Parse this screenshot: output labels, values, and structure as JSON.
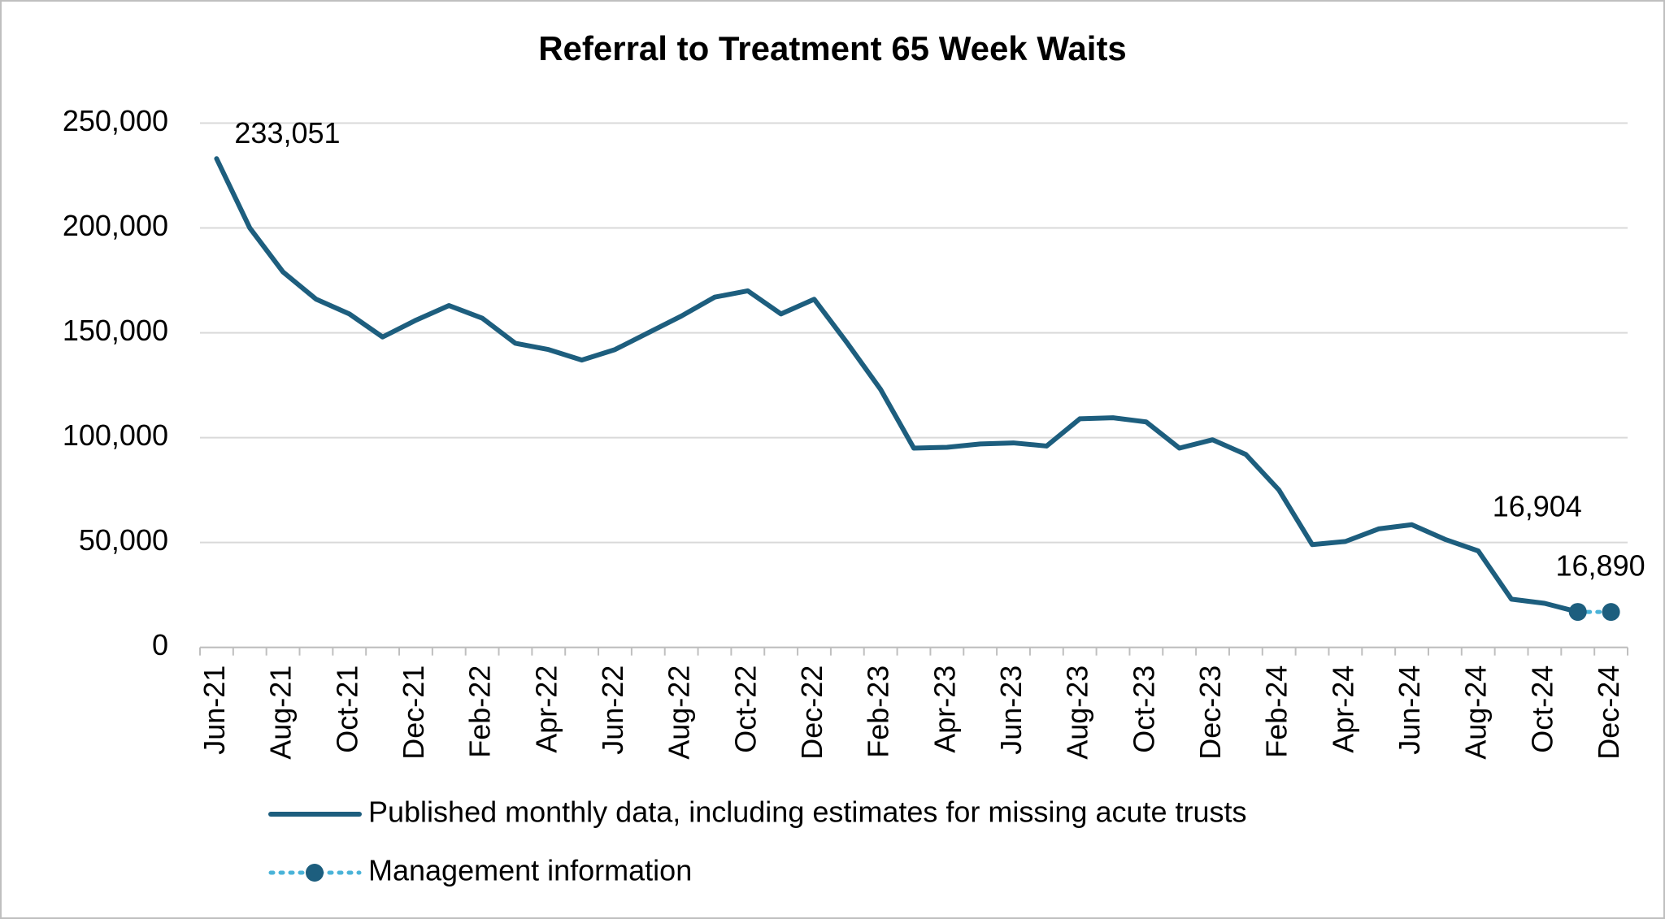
{
  "chart_data": {
    "type": "line",
    "title": "Referral to Treatment 65 Week Waits",
    "categories": [
      "Jun-21",
      null,
      "Aug-21",
      null,
      "Oct-21",
      null,
      "Dec-21",
      null,
      "Feb-22",
      null,
      "Apr-22",
      null,
      "Jun-22",
      null,
      "Aug-22",
      null,
      "Oct-22",
      null,
      "Dec-22",
      null,
      "Feb-23",
      null,
      "Apr-23",
      null,
      "Jun-23",
      null,
      "Aug-23",
      null,
      "Oct-23",
      null,
      "Dec-23",
      null,
      "Feb-24",
      null,
      "Apr-24",
      null,
      "Jun-24",
      null,
      "Aug-24",
      null,
      "Oct-24",
      null,
      "Dec-24"
    ],
    "series": [
      {
        "name": "Published monthly data, including estimates for missing acute trusts",
        "color": "#1d5e7e",
        "style": "solid",
        "values": [
          233051,
          200000,
          179000,
          166000,
          159000,
          148000,
          156000,
          163000,
          157000,
          145000,
          142000,
          137000,
          142000,
          150000,
          158000,
          167000,
          170000,
          159000,
          166000,
          145000,
          123000,
          95000,
          95400,
          97000,
          97500,
          96000,
          109000,
          109500,
          107500,
          95000,
          99000,
          92000,
          75000,
          49000,
          50500,
          56500,
          58500,
          51500,
          46000,
          23000,
          21000,
          16904,
          null
        ],
        "value_labels": [
          "233,051",
          null,
          null,
          null,
          null,
          null,
          null,
          null,
          null,
          null,
          null,
          null,
          null,
          null,
          null,
          null,
          null,
          null,
          null,
          null,
          null,
          null,
          null,
          null,
          null,
          null,
          null,
          null,
          null,
          null,
          null,
          null,
          null,
          null,
          null,
          null,
          null,
          null,
          null,
          null,
          null,
          null,
          null
        ]
      },
      {
        "name": "Management information",
        "color": "#4ab3d8",
        "marker_color": "#1d5e7e",
        "style": "dotted",
        "values": [
          null,
          null,
          null,
          null,
          null,
          null,
          null,
          null,
          null,
          null,
          null,
          null,
          null,
          null,
          null,
          null,
          null,
          null,
          null,
          null,
          null,
          null,
          null,
          null,
          null,
          null,
          null,
          null,
          null,
          null,
          null,
          null,
          null,
          null,
          null,
          null,
          null,
          null,
          null,
          null,
          null,
          16904,
          16890
        ],
        "value_labels": [
          null,
          null,
          null,
          null,
          null,
          null,
          null,
          null,
          null,
          null,
          null,
          null,
          null,
          null,
          null,
          null,
          null,
          null,
          null,
          null,
          null,
          null,
          null,
          null,
          null,
          null,
          null,
          null,
          null,
          null,
          null,
          null,
          null,
          null,
          null,
          null,
          null,
          null,
          null,
          null,
          null,
          "16,904",
          "16,890"
        ]
      }
    ],
    "ylim": [
      0,
      250000
    ],
    "yticks": [
      0,
      {
        "value": 50000,
        "label": "50,000"
      },
      {
        "value": 100000,
        "label": "100,000"
      },
      {
        "value": 150000,
        "label": "150,000"
      },
      {
        "value": 200000,
        "label": "200,000"
      },
      {
        "value": 250000,
        "label": "250,000"
      }
    ],
    "grid": true,
    "legend": "bottom"
  }
}
